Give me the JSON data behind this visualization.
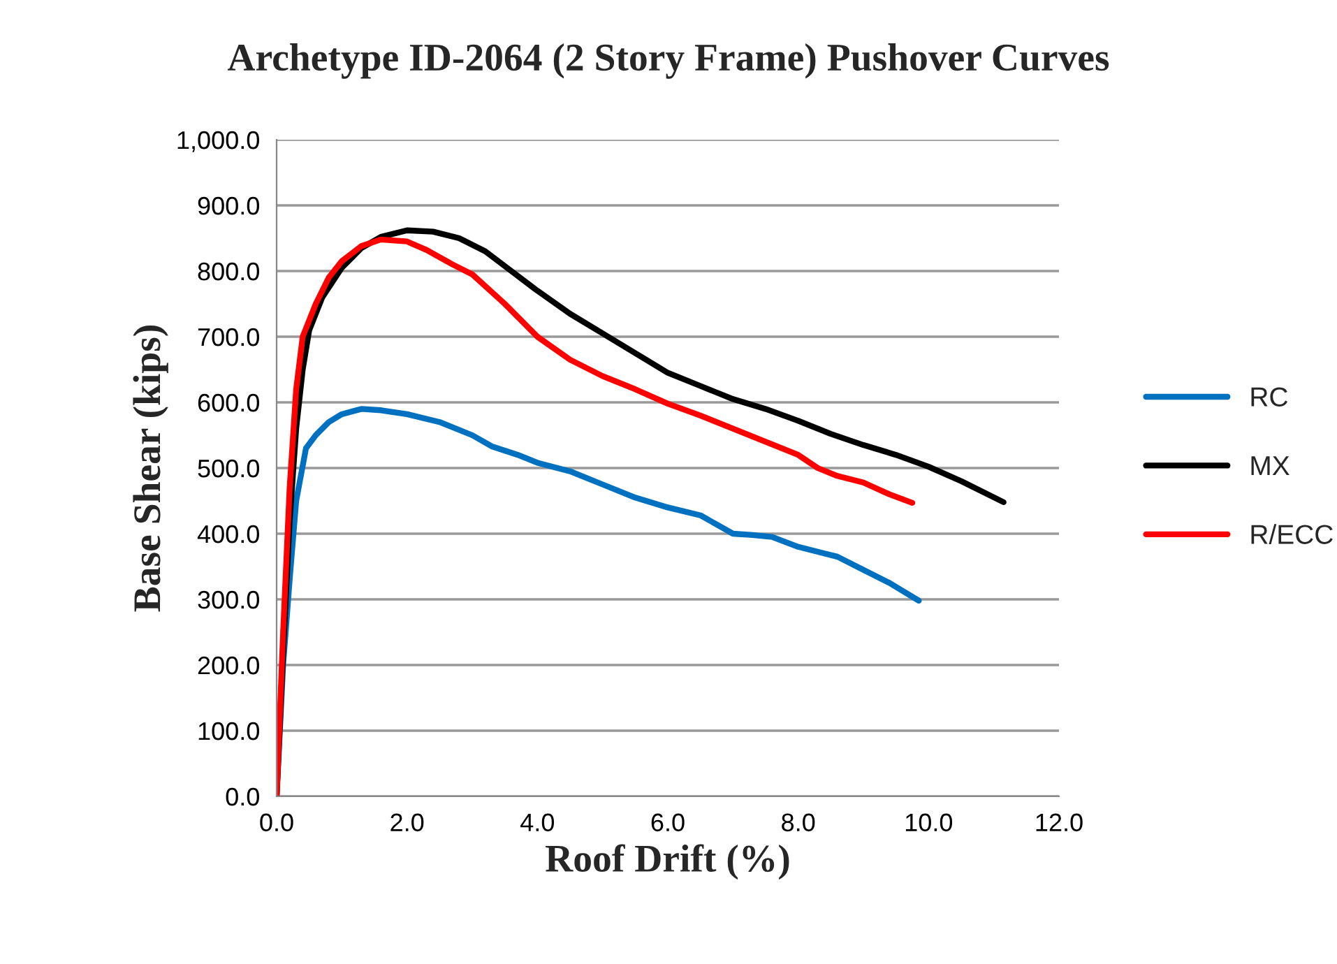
{
  "chart_data": {
    "type": "line",
    "title": "Archetype ID-2064 (2 Story Frame) Pushover Curves",
    "xlabel": "Roof Drift (%)",
    "ylabel": "Base Shear (kips)",
    "xlim": [
      0,
      12
    ],
    "xticks": [
      {
        "value": 0,
        "label": "0.0"
      },
      {
        "value": 2,
        "label": "2.0"
      },
      {
        "value": 4,
        "label": "4.0"
      },
      {
        "value": 6,
        "label": "6.0"
      },
      {
        "value": 8,
        "label": "8.0"
      },
      {
        "value": 10,
        "label": "10.0"
      },
      {
        "value": 12,
        "label": "12.0"
      }
    ],
    "ylim": [
      0,
      1000
    ],
    "yticks": [
      {
        "value": 0,
        "label": "0.0"
      },
      {
        "value": 100,
        "label": "100.0"
      },
      {
        "value": 200,
        "label": "200.0"
      },
      {
        "value": 300,
        "label": "300.0"
      },
      {
        "value": 400,
        "label": "400.0"
      },
      {
        "value": 500,
        "label": "500.0"
      },
      {
        "value": 600,
        "label": "600.0"
      },
      {
        "value": 700,
        "label": "700.0"
      },
      {
        "value": 800,
        "label": "800.0"
      },
      {
        "value": 900,
        "label": "900.0"
      },
      {
        "value": 1000,
        "label": "1,000.0"
      }
    ],
    "grid": "y",
    "legend": "right",
    "marker": "none",
    "line_style": "solid",
    "series": [
      {
        "name": "RC",
        "color": "#0070c0",
        "x": [
          0,
          0.1,
          0.2,
          0.3,
          0.45,
          0.6,
          0.8,
          1.0,
          1.3,
          1.6,
          2.0,
          2.5,
          3.0,
          3.3,
          3.7,
          4.0,
          4.5,
          5.0,
          5.5,
          6.0,
          6.5,
          7.0,
          7.3,
          7.6,
          8.0,
          8.4,
          8.6,
          9.0,
          9.4,
          9.85
        ],
        "values": [
          0,
          200,
          330,
          450,
          530,
          550,
          570,
          582,
          590,
          588,
          582,
          570,
          550,
          533,
          520,
          508,
          495,
          475,
          455,
          440,
          428,
          400,
          398,
          395,
          380,
          370,
          365,
          345,
          325,
          298
        ]
      },
      {
        "name": "MX",
        "color": "#000000",
        "x": [
          0,
          0.1,
          0.2,
          0.3,
          0.4,
          0.5,
          0.7,
          1.0,
          1.3,
          1.6,
          2.0,
          2.4,
          2.8,
          3.2,
          3.6,
          4.0,
          4.5,
          5.0,
          5.5,
          6.0,
          6.5,
          7.0,
          7.5,
          8.0,
          8.5,
          9.0,
          9.5,
          10.0,
          10.5,
          11.15
        ],
        "values": [
          0,
          220,
          420,
          560,
          650,
          710,
          760,
          805,
          835,
          852,
          862,
          860,
          850,
          830,
          800,
          770,
          735,
          705,
          675,
          645,
          625,
          605,
          590,
          572,
          552,
          535,
          520,
          502,
          480,
          448
        ]
      },
      {
        "name": "R/ECC",
        "color": "#ff0000",
        "x": [
          0,
          0.1,
          0.2,
          0.3,
          0.4,
          0.6,
          0.8,
          1.0,
          1.3,
          1.6,
          2.0,
          2.3,
          2.7,
          3.0,
          3.5,
          4.0,
          4.5,
          5.0,
          5.5,
          6.0,
          6.5,
          7.0,
          7.5,
          8.0,
          8.3,
          8.6,
          9.0,
          9.4,
          9.75
        ],
        "values": [
          0,
          250,
          470,
          620,
          700,
          750,
          790,
          815,
          838,
          848,
          845,
          832,
          810,
          795,
          750,
          700,
          665,
          640,
          620,
          598,
          580,
          560,
          540,
          520,
          500,
          488,
          478,
          460,
          447
        ]
      }
    ]
  }
}
